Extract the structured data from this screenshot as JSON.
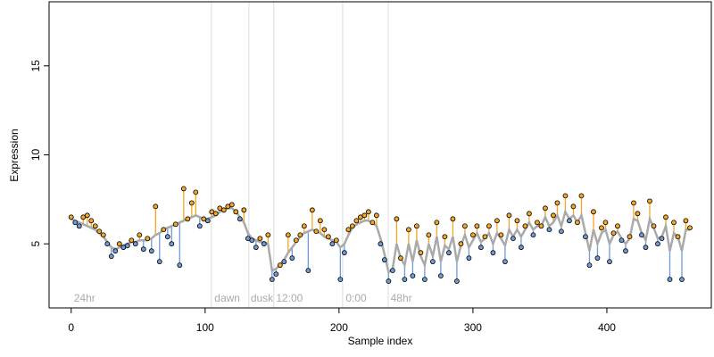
{
  "chart_data": {
    "type": "residual-scatter",
    "xlabel": "Sample index",
    "ylabel": "Expression",
    "xlim": [
      -16.5,
      478
    ],
    "ylim": [
      1.4,
      18.6
    ],
    "xticks": [
      0,
      100,
      200,
      300,
      400
    ],
    "yticks": [
      5,
      10,
      15
    ],
    "colors": {
      "above": "#f5a623",
      "below": "#6f9bd8",
      "fit": "#aaaaaa",
      "point": "#000000",
      "vline": "#dddddd",
      "annotation": "#aaaaaa"
    },
    "vlines": [
      104.7,
      132.7,
      151.3,
      202.7,
      236.7
    ],
    "annotations": [
      {
        "x": 2,
        "text": "24hr"
      },
      {
        "x": 107,
        "text": "dawn"
      },
      {
        "x": 134,
        "text": "dusk"
      },
      {
        "x": 153,
        "text": "12:00"
      },
      {
        "x": 205,
        "text": "0:00"
      },
      {
        "x": 238.5,
        "text": "48hr"
      }
    ],
    "x": [
      0,
      3,
      6,
      9,
      12,
      15,
      18,
      21,
      24,
      27,
      30,
      33,
      36,
      39,
      42,
      45,
      48,
      51,
      54,
      57,
      60,
      63,
      66,
      69,
      72,
      75,
      78,
      81,
      84,
      87,
      90,
      93,
      96,
      99,
      102,
      105,
      108,
      111,
      114,
      117,
      120,
      123,
      126,
      129,
      132,
      135,
      138,
      141,
      144,
      147,
      150,
      153,
      156,
      159,
      162,
      165,
      168,
      171,
      174,
      177,
      180,
      183,
      186,
      189,
      192,
      195,
      198,
      201,
      204,
      207,
      210,
      213,
      216,
      219,
      222,
      225,
      228,
      231,
      234,
      237,
      240,
      243,
      246,
      249,
      252,
      255,
      258,
      261,
      264,
      267,
      270,
      273,
      276,
      279,
      282,
      285,
      288,
      291,
      294,
      297,
      300,
      303,
      306,
      309,
      312,
      315,
      318,
      321,
      324,
      327,
      330,
      333,
      336,
      339,
      342,
      345,
      348,
      351,
      354,
      357,
      360,
      363,
      366,
      369,
      372,
      375,
      378,
      381,
      384,
      387,
      390,
      393,
      396,
      399,
      402,
      405,
      408,
      411,
      414,
      417,
      420,
      423,
      426,
      429,
      432,
      435,
      438,
      441,
      444,
      447,
      450,
      453,
      456,
      459,
      462
    ],
    "values": [
      6.5,
      6.2,
      6.0,
      6.5,
      6.6,
      6.3,
      6.0,
      5.7,
      5.5,
      5.0,
      4.3,
      4.6,
      5.0,
      4.8,
      4.9,
      5.2,
      5.0,
      5.5,
      4.7,
      5.3,
      4.6,
      7.1,
      4.0,
      5.8,
      5.4,
      5.0,
      6.1,
      3.8,
      8.1,
      6.4,
      7.3,
      7.9,
      6.0,
      6.4,
      6.3,
      6.8,
      6.7,
      7.0,
      6.9,
      7.1,
      7.2,
      6.8,
      6.4,
      6.9,
      5.3,
      5.2,
      4.8,
      5.3,
      5.0,
      5.5,
      3.0,
      3.3,
      3.8,
      4.0,
      5.5,
      4.2,
      5.2,
      5.5,
      6.0,
      3.5,
      6.9,
      5.7,
      6.3,
      5.8,
      5.4,
      5.0,
      5.2,
      3.0,
      4.5,
      5.8,
      6.0,
      6.3,
      6.5,
      6.6,
      6.8,
      6.2,
      6.6,
      5.0,
      4.1,
      2.9,
      3.5,
      6.4,
      4.2,
      3.0,
      5.8,
      3.2,
      6.0,
      4.5,
      3.0,
      5.5,
      4.0,
      6.2,
      3.2,
      5.4,
      4.5,
      6.4,
      2.9,
      5.0,
      6.0,
      4.2,
      5.5,
      6.0,
      4.8,
      5.4,
      6.0,
      4.5,
      6.3,
      5.5,
      4.0,
      6.6,
      5.3,
      6.3,
      4.8,
      6.0,
      6.7,
      5.5,
      6.2,
      6.0,
      7.0,
      5.8,
      6.6,
      7.3,
      5.7,
      7.7,
      6.3,
      7.1,
      6.2,
      7.7,
      5.4,
      3.8,
      6.8,
      4.2,
      5.9,
      6.2,
      4.0,
      5.6,
      6.0,
      5.2,
      4.6,
      5.4,
      7.3,
      6.7,
      5.5,
      4.8,
      7.4,
      6.0,
      5.0,
      5.3,
      6.5,
      3.0,
      6.2,
      5.4,
      3.0,
      6.3,
      5.9
    ],
    "fit": [
      6.4,
      6.3,
      6.2,
      6.1,
      6.0,
      5.9,
      5.8,
      5.6,
      5.4,
      5.1,
      4.8,
      4.7,
      4.8,
      4.9,
      5.0,
      5.1,
      5.1,
      5.2,
      5.2,
      5.2,
      5.3,
      5.5,
      5.6,
      5.8,
      5.9,
      6.0,
      6.1,
      6.2,
      6.3,
      6.4,
      6.5,
      6.6,
      6.5,
      6.4,
      6.4,
      6.5,
      6.6,
      6.8,
      6.9,
      7.0,
      7.0,
      6.8,
      6.5,
      6.2,
      5.6,
      5.3,
      5.2,
      5.1,
      5.1,
      5.0,
      3.5,
      3.6,
      3.8,
      4.1,
      4.5,
      4.8,
      5.1,
      5.4,
      5.6,
      5.7,
      5.8,
      5.7,
      5.6,
      5.4,
      5.3,
      5.2,
      5.1,
      4.8,
      5.0,
      5.5,
      5.9,
      6.1,
      6.2,
      6.3,
      6.3,
      6.2,
      6.0,
      5.3,
      4.4,
      3.4,
      3.6,
      5.0,
      4.2,
      3.8,
      5.0,
      4.0,
      5.2,
      4.3,
      3.8,
      5.0,
      4.3,
      5.4,
      4.0,
      4.9,
      4.7,
      5.4,
      4.0,
      4.9,
      5.5,
      4.8,
      5.2,
      5.6,
      5.1,
      5.3,
      5.6,
      5.0,
      5.6,
      5.3,
      4.9,
      5.8,
      5.4,
      5.8,
      5.4,
      5.8,
      6.2,
      5.8,
      6.0,
      6.0,
      6.5,
      6.0,
      6.2,
      6.6,
      6.0,
      6.8,
      6.4,
      6.6,
      6.2,
      6.6,
      5.6,
      4.6,
      5.8,
      5.0,
      5.6,
      5.8,
      5.0,
      5.5,
      5.7,
      5.3,
      5.0,
      5.3,
      6.4,
      6.3,
      5.6,
      5.2,
      6.4,
      5.9,
      5.3,
      5.4,
      6.0,
      4.6,
      5.6,
      5.4,
      4.6,
      5.8,
      5.8
    ]
  }
}
